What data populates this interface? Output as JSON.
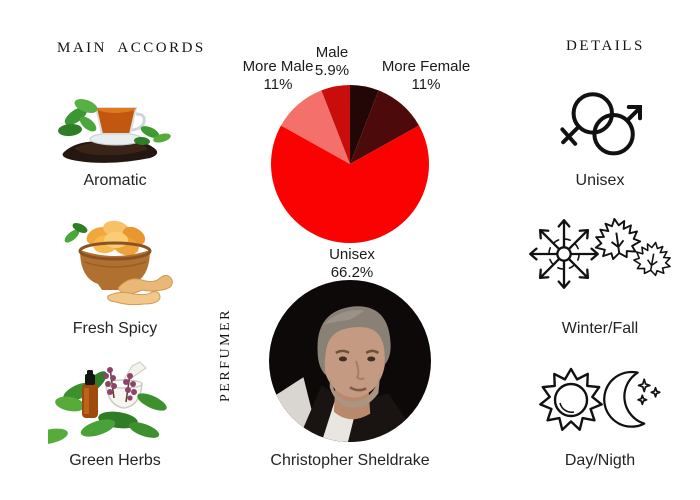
{
  "page": {
    "background": "#ffffff"
  },
  "left_column": {
    "header": "MAIN ACCORDS",
    "accords": [
      {
        "label": "Aromatic",
        "image": "tea-cup-mint-leaves-black-tea"
      },
      {
        "label": "Fresh Spicy",
        "image": "wooden-bowl-dried-ginger"
      },
      {
        "label": "Green Herbs",
        "image": "basil-herbs-oil-bottle-mortar"
      }
    ]
  },
  "center_column": {
    "perfumer_heading": "PERFUMER",
    "perfumer_name": "Christopher Sheldrake",
    "photo": "christopher-sheldrake-portrait"
  },
  "right_column": {
    "header": "DETAILS",
    "details": [
      {
        "label": "Unisex",
        "icons": [
          "female-male-symbols"
        ]
      },
      {
        "label": "Winter/Fall",
        "icons": [
          "snowflake",
          "maple-leaves"
        ]
      },
      {
        "label": "Day/Nigth",
        "icons": [
          "sun",
          "crescent-moon-stars"
        ]
      }
    ]
  },
  "chart_data": {
    "type": "pie",
    "title": "",
    "legend_position": "none",
    "direction": "clockwise",
    "start_angle_deg": 0,
    "slices": [
      {
        "label": "Male",
        "pct_text": "5.9%",
        "value": 5.9,
        "color": "#230606",
        "labeled": true
      },
      {
        "label": "More Female",
        "pct_text": "11%",
        "value": 11.0,
        "color": "#4d0a0a",
        "labeled": true
      },
      {
        "label": "Unisex",
        "pct_text": "66.2%",
        "value": 66.2,
        "color": "#fb0202",
        "labeled": true
      },
      {
        "label": "More Male",
        "pct_text": "11%",
        "value": 11.0,
        "color": "#f4716b",
        "labeled": true
      },
      {
        "label": "",
        "pct_text": "",
        "value": 5.9,
        "color": "#c90d0d",
        "labeled": false
      }
    ]
  }
}
